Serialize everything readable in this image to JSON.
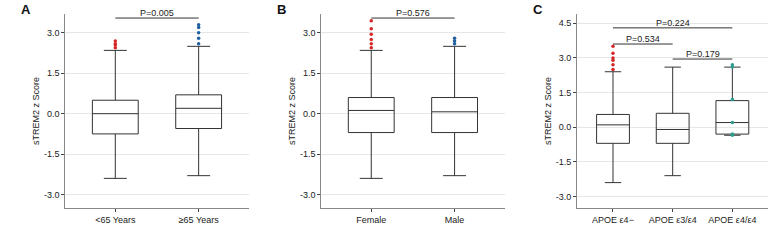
{
  "chart_data": [
    {
      "type": "box",
      "title": "A",
      "y_label": "sTREM2 z Score",
      "categories": [
        "<65 Years",
        "≥65 Years"
      ],
      "colors": [
        "#d62728",
        "#1f5fa0"
      ],
      "lower_whisker": [
        -2.4,
        -2.3
      ],
      "q1": [
        -0.75,
        -0.55
      ],
      "median": [
        0.0,
        0.2
      ],
      "q3": [
        0.5,
        0.7
      ],
      "upper_whisker": [
        2.35,
        2.5
      ],
      "points": [
        [
          2.45,
          2.55,
          2.6,
          2.7
        ],
        [
          2.6,
          2.8,
          3.0,
          3.2,
          3.3
        ]
      ],
      "comparisons": [
        {
          "from": 0,
          "to": 1,
          "y": 3.55,
          "label": "P=0.005"
        }
      ],
      "ylim": [
        -3.5,
        3.7
      ],
      "yticks": [
        {
          "value": -3,
          "label": "-3.0"
        },
        {
          "value": -1.5,
          "label": "-1.5"
        },
        {
          "value": 0,
          "label": "0.0"
        },
        {
          "value": 1.5,
          "label": "1.5"
        },
        {
          "value": 3,
          "label": "3.0"
        }
      ],
      "grid": true
    },
    {
      "type": "box",
      "title": "B",
      "y_label": "sTREM2 z Score",
      "categories": [
        "Female",
        "Male"
      ],
      "colors": [
        "#d62728",
        "#1f5fa0"
      ],
      "lower_whisker": [
        -2.4,
        -2.3
      ],
      "q1": [
        -0.7,
        -0.7
      ],
      "median": [
        0.12,
        0.07
      ],
      "q3": [
        0.6,
        0.6
      ],
      "upper_whisker": [
        2.35,
        2.5
      ],
      "points": [
        [
          2.45,
          2.6,
          2.75,
          2.95,
          3.15,
          3.45
        ],
        [
          2.6,
          2.7,
          2.8
        ]
      ],
      "comparisons": [
        {
          "from": 0,
          "to": 1,
          "y": 3.55,
          "label": "P=0.576"
        }
      ],
      "ylim": [
        -3.5,
        3.7
      ],
      "yticks": [
        {
          "value": -3,
          "label": "-3.0"
        },
        {
          "value": -1.5,
          "label": "-1.5"
        },
        {
          "value": 0,
          "label": "0.0"
        },
        {
          "value": 1.5,
          "label": "1.5"
        },
        {
          "value": 3,
          "label": "3.0"
        }
      ],
      "grid": true
    },
    {
      "type": "box",
      "title": "C",
      "y_label": "sTREM2 z Score",
      "categories": [
        "APOE ε4−",
        "APOE ε3/ε4",
        "APOE ε4/ε4"
      ],
      "colors": [
        "#d62728",
        "#1f5fa0",
        "#2a9d8f"
      ],
      "lower_whisker": [
        -2.4,
        -2.1,
        -0.35
      ],
      "q1": [
        -0.7,
        -0.7,
        -0.3
      ],
      "median": [
        0.1,
        -0.1,
        0.2
      ],
      "q3": [
        0.55,
        0.6,
        1.15
      ],
      "upper_whisker": [
        2.4,
        2.6,
        2.6
      ],
      "points": [
        [
          2.5,
          2.7,
          2.9,
          3.0,
          3.2,
          3.5
        ],
        [],
        [
          2.7,
          2.6,
          1.2,
          0.2,
          -0.3,
          -0.35
        ]
      ],
      "comparisons": [
        {
          "from": 0,
          "to": 1,
          "y": 3.6,
          "label": "P=0.534"
        },
        {
          "from": 1,
          "to": 2,
          "y": 2.95,
          "label": "P=0.179"
        },
        {
          "from": 0,
          "to": 2,
          "y": 4.3,
          "label": "P=0.224"
        }
      ],
      "ylim": [
        -3.5,
        4.9
      ],
      "yticks": [
        {
          "value": -3,
          "label": "-3.0"
        },
        {
          "value": -1.5,
          "label": "-1.5"
        },
        {
          "value": 0,
          "label": "0.0"
        },
        {
          "value": 1.5,
          "label": "1.5"
        },
        {
          "value": 3,
          "label": "3.0"
        },
        {
          "value": 4.5,
          "label": "4.5"
        }
      ],
      "grid": true
    }
  ]
}
